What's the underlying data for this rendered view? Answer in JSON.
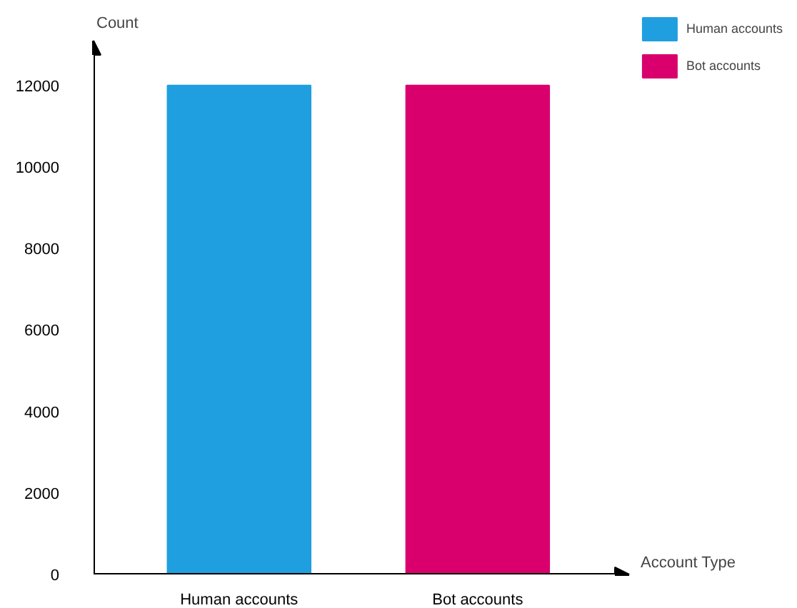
{
  "chart_data": {
    "type": "bar",
    "xlabel": "Account Type",
    "ylabel": "Count",
    "categories": [
      "Human accounts",
      "Bot accounts"
    ],
    "series": [
      {
        "name": "Human accounts",
        "color": "#1f9fe0",
        "values": [
          12000,
          null
        ]
      },
      {
        "name": "Bot accounts",
        "color": "#d9006e",
        "values": [
          null,
          12000
        ]
      }
    ],
    "ylim": [
      0,
      13100
    ],
    "yticks": [
      0,
      2000,
      4000,
      6000,
      8000,
      10000,
      12000
    ],
    "grid": false,
    "legend": "top right"
  }
}
